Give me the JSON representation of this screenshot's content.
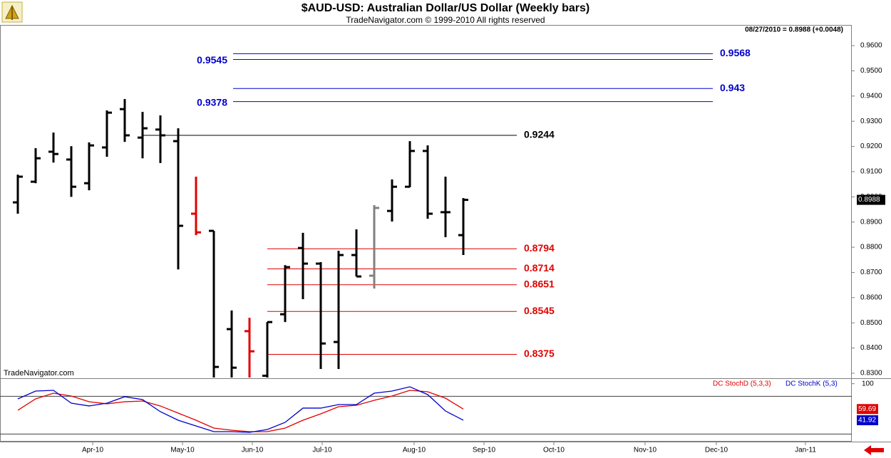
{
  "chart_data": [
    {
      "type": "ohlc",
      "title": "$AUD-USD:  Australian Dollar/US Dollar  (Weekly bars)",
      "subtitle": "TradeNavigator.com © 1999-2010 All rights reserved",
      "info": "08/27/2010 = 0.8988 (+0.0048)",
      "watermark": "TradeNavigator.com",
      "x": [
        0,
        1,
        2,
        3,
        4,
        5,
        6,
        7,
        8,
        9,
        10,
        11,
        12,
        13,
        14,
        15,
        16,
        17,
        18,
        19,
        20,
        21,
        22,
        23,
        24,
        25
      ],
      "xlim": [
        -1,
        46.8
      ],
      "ylim": [
        0.8283,
        0.9668
      ],
      "yticks": [
        {
          "value": 0.83,
          "label": "0.8300"
        },
        {
          "value": 0.84,
          "label": "0.8400"
        },
        {
          "value": 0.85,
          "label": "0.8500"
        },
        {
          "value": 0.86,
          "label": "0.8600"
        },
        {
          "value": 0.87,
          "label": "0.8700"
        },
        {
          "value": 0.88,
          "label": "0.8800"
        },
        {
          "value": 0.89,
          "label": "0.8900"
        },
        {
          "value": 0.9,
          "label": "0.9000"
        },
        {
          "value": 0.91,
          "label": "0.9100"
        },
        {
          "value": 0.92,
          "label": "0.9200"
        },
        {
          "value": 0.93,
          "label": "0.9300"
        },
        {
          "value": 0.94,
          "label": "0.9400"
        },
        {
          "value": 0.95,
          "label": "0.9500"
        },
        {
          "value": 0.96,
          "label": "0.9600"
        }
      ],
      "open": [
        0.8978,
        0.906,
        0.9179,
        0.9148,
        0.9054,
        0.9196,
        0.9348,
        0.9235,
        0.9267,
        0.9221,
        0.8933,
        0.8865,
        0.8475,
        0.8467,
        0.829,
        0.8534,
        0.8797,
        0.8735,
        0.8424,
        0.8769,
        0.8687,
        0.8944,
        0.904,
        0.9182,
        0.8939,
        0.8848
      ],
      "high": [
        0.9088,
        0.9193,
        0.9255,
        0.9201,
        0.9216,
        0.9343,
        0.9388,
        0.9337,
        0.9323,
        0.9272,
        0.908,
        0.8865,
        0.8549,
        0.852,
        0.8503,
        0.8729,
        0.8857,
        0.8741,
        0.8786,
        0.8871,
        0.8967,
        0.9069,
        0.9221,
        0.9204,
        0.908,
        0.8995
      ],
      "low": [
        0.8933,
        0.9054,
        0.9136,
        0.9,
        0.9026,
        0.9159,
        0.9218,
        0.9153,
        0.9134,
        0.8712,
        0.8848,
        0.8283,
        0.8283,
        0.8283,
        0.8283,
        0.8503,
        0.8594,
        0.8317,
        0.8317,
        0.8684,
        0.8636,
        0.8902,
        0.9038,
        0.8913,
        0.884,
        0.8769
      ],
      "close": [
        0.908,
        0.9153,
        0.917,
        0.904,
        0.9204,
        0.9334,
        0.9244,
        0.9272,
        0.9244,
        0.8885,
        0.8859,
        0.8325,
        0.8322,
        0.8387,
        0.8503,
        0.8721,
        0.8735,
        0.8418,
        0.8769,
        0.8684,
        0.8956,
        0.904,
        0.9182,
        0.8933,
        0.8939,
        0.8988
      ],
      "bar_colors": [
        "#000",
        "#000",
        "#000",
        "#000",
        "#000",
        "#000",
        "#000",
        "#000",
        "#000",
        "#000",
        "#e00000",
        "#000",
        "#000",
        "#e00000",
        "#000",
        "#000",
        "#000",
        "#000",
        "#000",
        "#000",
        "#808080",
        "#000",
        "#000",
        "#000",
        "#000",
        "#000"
      ],
      "levels": [
        {
          "value": 0.9568,
          "color": "#0000cc",
          "label_side": "right"
        },
        {
          "value": 0.9545,
          "color": "#0000cc",
          "label_side": "left"
        },
        {
          "value": 0.943,
          "color": "#0000cc",
          "label_side": "right"
        },
        {
          "value": 0.9378,
          "color": "#0000cc",
          "label_side": "left"
        },
        {
          "value": 0.9244,
          "color": "#000000",
          "label_side": "right"
        },
        {
          "value": 0.8794,
          "color": "#e00000",
          "label_side": "right"
        },
        {
          "value": 0.8714,
          "color": "#e00000",
          "label_side": "right"
        },
        {
          "value": 0.8651,
          "color": "#e00000",
          "label_side": "right"
        },
        {
          "value": 0.8545,
          "color": "#e00000",
          "label_side": "right"
        },
        {
          "value": 0.8375,
          "color": "#e00000",
          "label_side": "right"
        }
      ],
      "last_price": 0.8988
    },
    {
      "type": "line",
      "x": [
        0,
        1,
        2,
        3,
        4,
        5,
        6,
        7,
        8,
        9,
        10,
        11,
        12,
        13,
        14,
        15,
        16,
        17,
        18,
        19,
        20,
        21,
        22,
        23,
        24,
        25
      ],
      "xlim": [
        -1,
        46.8
      ],
      "xticks": [
        {
          "value": 4.2,
          "label": "Apr-10"
        },
        {
          "value": 9.24,
          "label": "May-10"
        },
        {
          "value": 13.16,
          "label": "Jun-10"
        },
        {
          "value": 17.08,
          "label": "Jul-10"
        },
        {
          "value": 22.24,
          "label": "Aug-10"
        },
        {
          "value": 26.16,
          "label": "Sep-10"
        },
        {
          "value": 30.08,
          "label": "Oct-10"
        },
        {
          "value": 35.2,
          "label": "Nov-10"
        },
        {
          "value": 39.2,
          "label": "Dec-10"
        },
        {
          "value": 44.2,
          "label": "Jan-11"
        }
      ],
      "ylim": [
        7.9,
        107.6
      ],
      "yticks": [
        100
      ],
      "ref_lines": [
        80,
        20
      ],
      "legend": "top-right",
      "series": [
        {
          "name": "DC StochD (5,3,3)",
          "color": "#e00000",
          "values": [
            57.8,
            75.9,
            84.9,
            80.4,
            71.3,
            68.0,
            71.3,
            72.5,
            64.6,
            53.2,
            41.9,
            29.4,
            26.0,
            23.8,
            23.8,
            29.4,
            41.9,
            52.1,
            63.4,
            65.7,
            73.6,
            80.4,
            89.5,
            87.2,
            77.0,
            59.69
          ]
        },
        {
          "name": "DC StochK (5,3)",
          "color": "#0000cc",
          "values": [
            75.9,
            88.3,
            89.5,
            69.1,
            64.6,
            69.1,
            79.3,
            74.7,
            55.5,
            41.9,
            32.8,
            23.8,
            23.8,
            22.6,
            27.2,
            38.5,
            61.2,
            61.2,
            66.8,
            66.8,
            84.9,
            88.3,
            95.1,
            82.7,
            56.6,
            41.92
          ]
        }
      ]
    }
  ]
}
